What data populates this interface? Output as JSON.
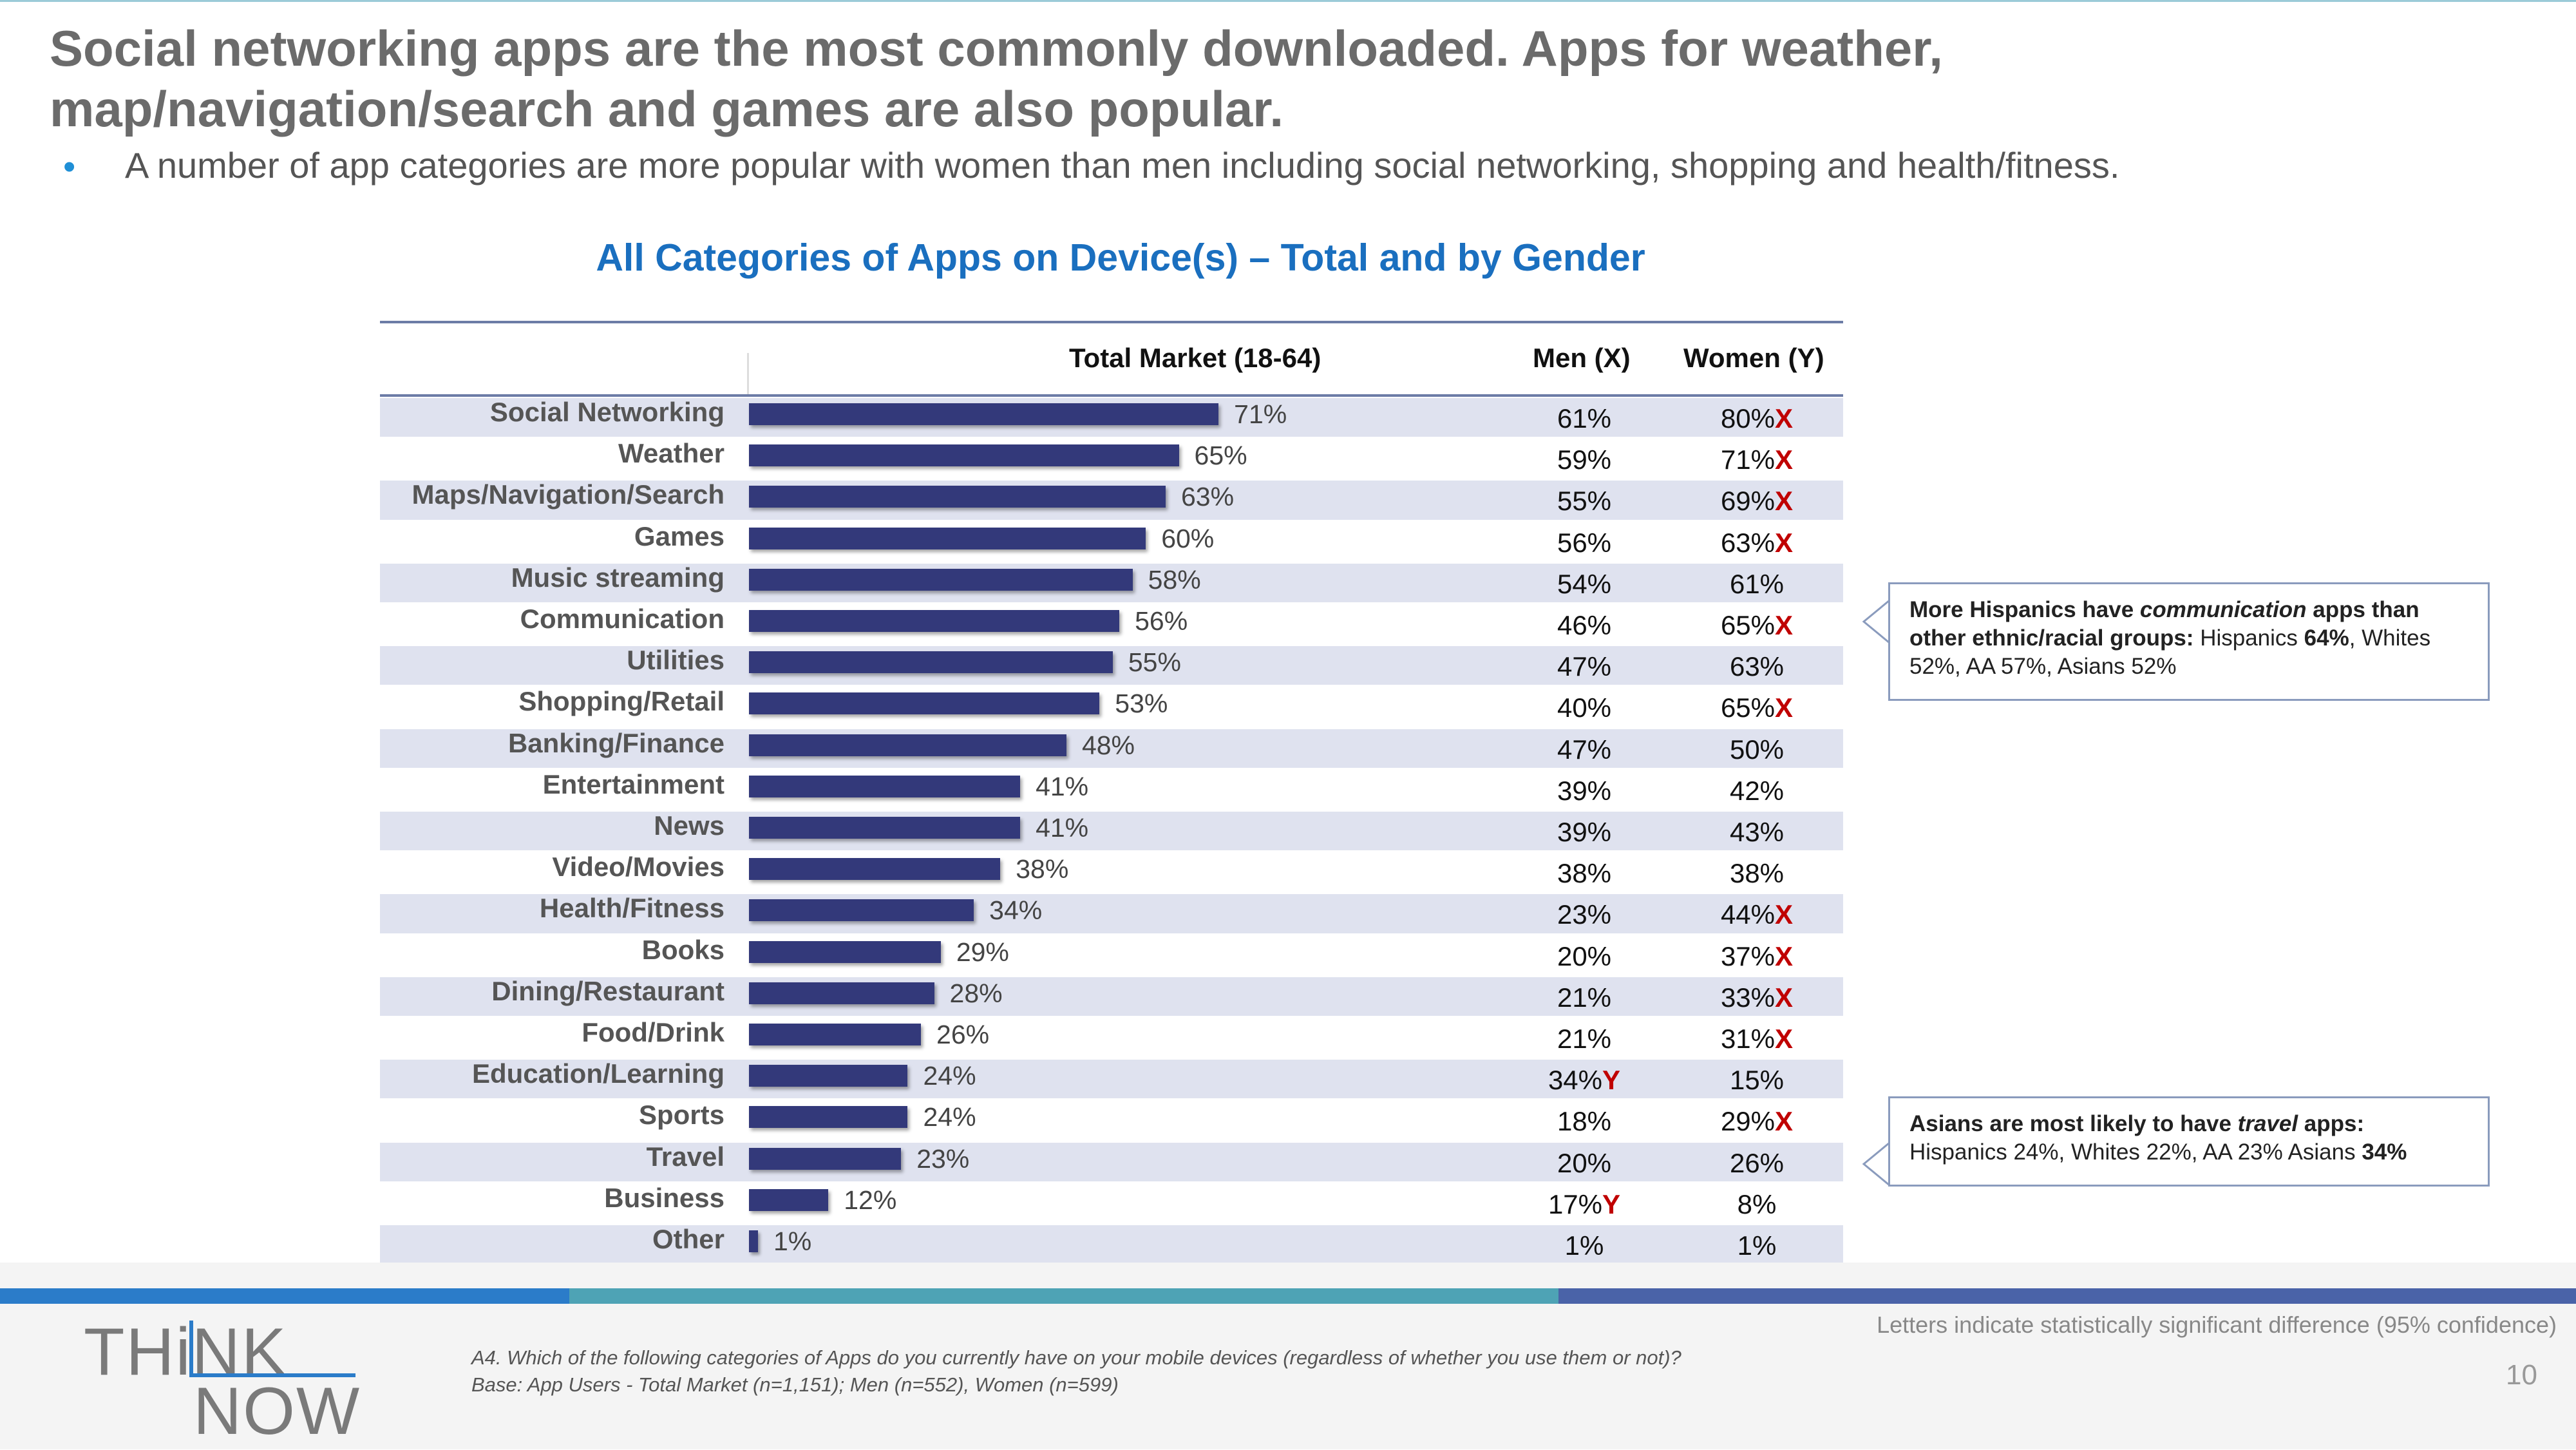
{
  "slide": {
    "title": "Social networking apps are the most commonly downloaded. Apps for weather, map/navigation/search and games are also popular.",
    "bullet": "•",
    "subtitle": "A number of app categories are more popular with women than men including social networking, shopping and health/fitness.",
    "sig_note": "Letters indicate statistically significant difference (95% confidence)",
    "page_number": "10",
    "footnote_question": "A4. Which of the following categories of Apps do you currently have on your mobile devices (regardless of whether you use them or not)?",
    "footnote_base": "Base: App Users - Total Market (n=1,151); Men (n=552), Women (n=599)"
  },
  "logo": {
    "line1": "THiNK",
    "line2": "NOW"
  },
  "callouts": {
    "communication": {
      "part1": "More Hispanics have ",
      "italic": "communication",
      "part2": " apps than other ethnic/racial groups:",
      "part3": " Hispanics ",
      "bold_value": "64%",
      "part4": ", Whites 52%, AA 57%, Asians 52%"
    },
    "travel": {
      "part1": "Asians are most likely to have ",
      "italic": "travel",
      "part2": " apps:",
      "part3": "Hispanics 24%, Whites 22%, AA 23% Asians ",
      "bold_value": "34%"
    }
  },
  "colors": {
    "bar": "#33397a",
    "row_alt": "#dfe2ef",
    "title_blue": "#1a6fbf",
    "sig_red": "#c00000",
    "stripe_blue": "#2b7cc9",
    "stripe_teal": "#4ea3b5",
    "stripe_navy": "#4a63a8"
  },
  "chart_data": {
    "type": "bar",
    "orientation": "horizontal",
    "title": "All Categories of Apps on Device(s) – Total and by Gender",
    "columns": {
      "total": "Total Market (18-64)",
      "men": "Men (X)",
      "women": "Women (Y)"
    },
    "xlim": [
      0,
      100
    ],
    "categories": [
      "Social Networking",
      "Weather",
      "Maps/Navigation/Search",
      "Games",
      "Music streaming",
      "Communication",
      "Utilities",
      "Shopping/Retail",
      "Banking/Finance",
      "Entertainment",
      "News",
      "Video/Movies",
      "Health/Fitness",
      "Books",
      "Dining/Restaurant",
      "Food/Drink",
      "Education/Learning",
      "Sports",
      "Travel",
      "Business",
      "Other"
    ],
    "values": [
      71,
      65,
      63,
      60,
      58,
      56,
      55,
      53,
      48,
      41,
      41,
      38,
      34,
      29,
      28,
      26,
      24,
      24,
      23,
      12,
      1
    ],
    "value_labels": [
      "71%",
      "65%",
      "63%",
      "60%",
      "58%",
      "56%",
      "55%",
      "53%",
      "48%",
      "41%",
      "41%",
      "38%",
      "34%",
      "29%",
      "28%",
      "26%",
      "24%",
      "24%",
      "23%",
      "12%",
      "1%"
    ],
    "men": [
      "61%",
      "59%",
      "55%",
      "56%",
      "54%",
      "46%",
      "47%",
      "40%",
      "47%",
      "39%",
      "39%",
      "38%",
      "23%",
      "20%",
      "21%",
      "21%",
      "34%",
      "18%",
      "20%",
      "17%",
      "1%"
    ],
    "men_sig": [
      "",
      "",
      "",
      "",
      "",
      "",
      "",
      "",
      "",
      "",
      "",
      "",
      "",
      "",
      "",
      "",
      "Y",
      "",
      "",
      "Y",
      ""
    ],
    "women": [
      "80%",
      "71%",
      "69%",
      "63%",
      "61%",
      "65%",
      "63%",
      "65%",
      "50%",
      "42%",
      "43%",
      "38%",
      "44%",
      "37%",
      "33%",
      "31%",
      "15%",
      "29%",
      "26%",
      "8%",
      "1%"
    ],
    "women_sig": [
      "X",
      "X",
      "X",
      "X",
      "",
      "X",
      "",
      "X",
      "",
      "",
      "",
      "",
      "X",
      "X",
      "X",
      "X",
      "",
      "X",
      "",
      "",
      ""
    ]
  }
}
